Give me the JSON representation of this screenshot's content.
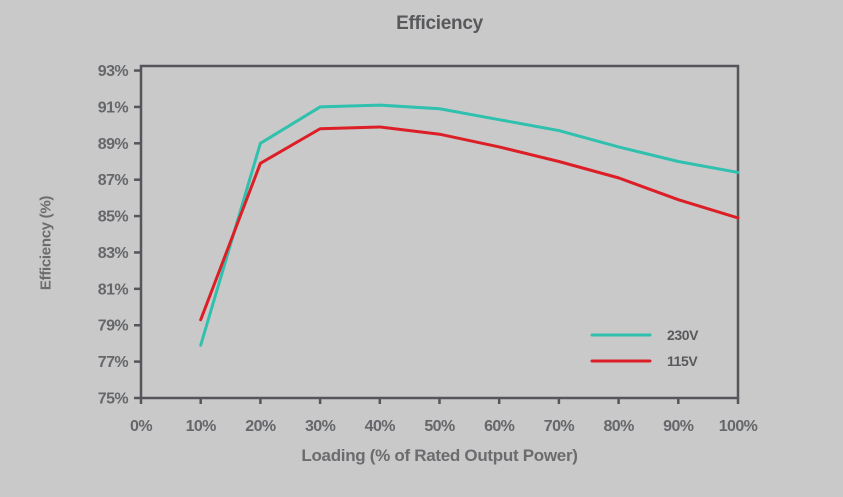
{
  "chart_data": {
    "type": "line",
    "title": "Efficiency",
    "xlabel": "Loading (% of Rated Output Power)",
    "ylabel": "Efficiency (%)",
    "xlim": [
      0,
      100
    ],
    "ylim": [
      75,
      93.25
    ],
    "x": [
      10,
      20,
      30,
      40,
      50,
      60,
      70,
      80,
      90,
      100
    ],
    "x_ticks": [
      0,
      10,
      20,
      30,
      40,
      50,
      60,
      70,
      80,
      90,
      100
    ],
    "y_ticks": [
      75,
      77,
      79,
      81,
      83,
      85,
      87,
      89,
      91,
      93
    ],
    "tick_suffix": "%",
    "grid": false,
    "legend_position": "inside-lower-right",
    "axis_color": "#55565a",
    "background_color": "#c9c9ca",
    "series": [
      {
        "name": "230V",
        "color": "#2fc0ae",
        "values": [
          77.9,
          89.0,
          91.0,
          91.1,
          90.9,
          90.3,
          89.7,
          88.8,
          88.0,
          87.4
        ]
      },
      {
        "name": "115V",
        "color": "#dc1f26",
        "values": [
          79.3,
          87.9,
          89.8,
          89.9,
          89.5,
          88.8,
          88.0,
          87.1,
          85.9,
          84.9
        ]
      }
    ]
  }
}
